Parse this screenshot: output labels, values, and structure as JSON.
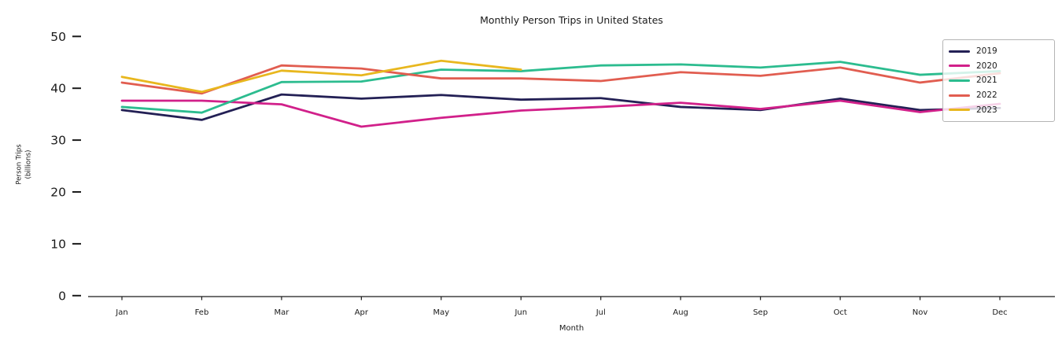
{
  "chart_data": {
    "type": "line",
    "title": "Monthly Person Trips in United States",
    "xlabel": "Month",
    "ylabel": "Person Trips (billions)",
    "ylabel_lines": [
      "Person Trips",
      "(billions)"
    ],
    "categories": [
      "Jan",
      "Feb",
      "Mar",
      "Apr",
      "May",
      "Jun",
      "Jul",
      "Aug",
      "Sep",
      "Oct",
      "Nov",
      "Dec"
    ],
    "yticks": [
      0,
      10,
      20,
      30,
      40,
      50
    ],
    "ylim": [
      0,
      52
    ],
    "grid": false,
    "legend_position": "upper right",
    "series": [
      {
        "name": "2019",
        "color": "#232055",
        "values": [
          35.8,
          33.9,
          38.8,
          38.0,
          38.7,
          37.8,
          38.1,
          36.4,
          35.8,
          38.0,
          35.8,
          36.2
        ]
      },
      {
        "name": "2020",
        "color": "#d1208a",
        "values": [
          37.6,
          37.6,
          36.9,
          32.6,
          34.3,
          35.7,
          36.4,
          37.2,
          36.0,
          37.6,
          35.4,
          37.0
        ]
      },
      {
        "name": "2021",
        "color": "#2cbc8f",
        "values": [
          36.4,
          35.3,
          41.2,
          41.3,
          43.6,
          43.3,
          44.4,
          44.6,
          44.0,
          45.1,
          42.6,
          43.3
        ]
      },
      {
        "name": "2022",
        "color": "#e15d50",
        "values": [
          41.1,
          39.0,
          44.4,
          43.8,
          41.9,
          41.9,
          41.4,
          43.1,
          42.4,
          44.0,
          41.1,
          42.9
        ]
      },
      {
        "name": "2023",
        "color": "#e8b71e",
        "values": [
          42.2,
          39.3,
          43.4,
          42.5,
          45.3,
          43.6,
          null,
          null,
          null,
          null,
          null,
          null
        ]
      }
    ]
  }
}
